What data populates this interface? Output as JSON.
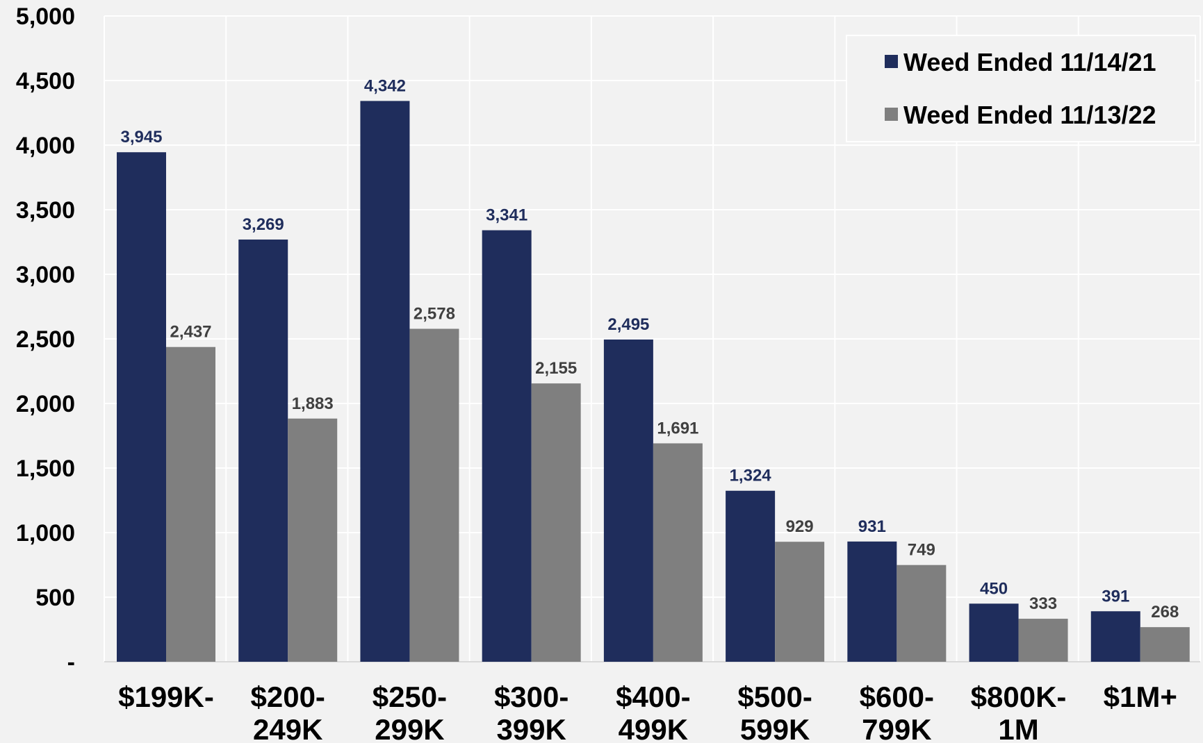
{
  "chart_data": {
    "type": "bar",
    "title": "",
    "xlabel": "",
    "ylabel": "",
    "ylim": [
      0,
      5000
    ],
    "yticks": [
      {
        "value": 0,
        "label": "-"
      },
      {
        "value": 500,
        "label": "500"
      },
      {
        "value": 1000,
        "label": "1,000"
      },
      {
        "value": 1500,
        "label": "1,500"
      },
      {
        "value": 2000,
        "label": "2,000"
      },
      {
        "value": 2500,
        "label": "2,500"
      },
      {
        "value": 3000,
        "label": "3,000"
      },
      {
        "value": 3500,
        "label": "3,500"
      },
      {
        "value": 4000,
        "label": "4,000"
      },
      {
        "value": 4500,
        "label": "4,500"
      },
      {
        "value": 5000,
        "label": "5,000"
      }
    ],
    "categories": [
      [
        "$199K-"
      ],
      [
        "$200-",
        "249K"
      ],
      [
        "$250-",
        "299K"
      ],
      [
        "$300-",
        "399K"
      ],
      [
        "$400-",
        "499K"
      ],
      [
        "$500-",
        "599K"
      ],
      [
        "$600-",
        "799K"
      ],
      [
        "$800K-",
        "1M"
      ],
      [
        "$1M+"
      ]
    ],
    "series": [
      {
        "name": "Weed Ended 11/14/21",
        "color": "#1f2d5c",
        "label_color": "#1f2d5c",
        "values": [
          3945,
          3269,
          4342,
          3341,
          2495,
          1324,
          931,
          450,
          391
        ],
        "labels": [
          "3,945",
          "3,269",
          "4,342",
          "3,341",
          "2,495",
          "1,324",
          "931",
          "450",
          "391"
        ]
      },
      {
        "name": "Weed Ended 11/13/22",
        "color": "#7f7f7f",
        "label_color": "#404040",
        "values": [
          2437,
          1883,
          2578,
          2155,
          1691,
          929,
          749,
          333,
          268
        ],
        "labels": [
          "2,437",
          "1,883",
          "2,578",
          "2,155",
          "1,691",
          "929",
          "749",
          "333",
          "268"
        ]
      }
    ],
    "grid": true,
    "legend_position": "top-right",
    "background_color": "#f2f2f2",
    "grid_color": "#ffffff"
  }
}
